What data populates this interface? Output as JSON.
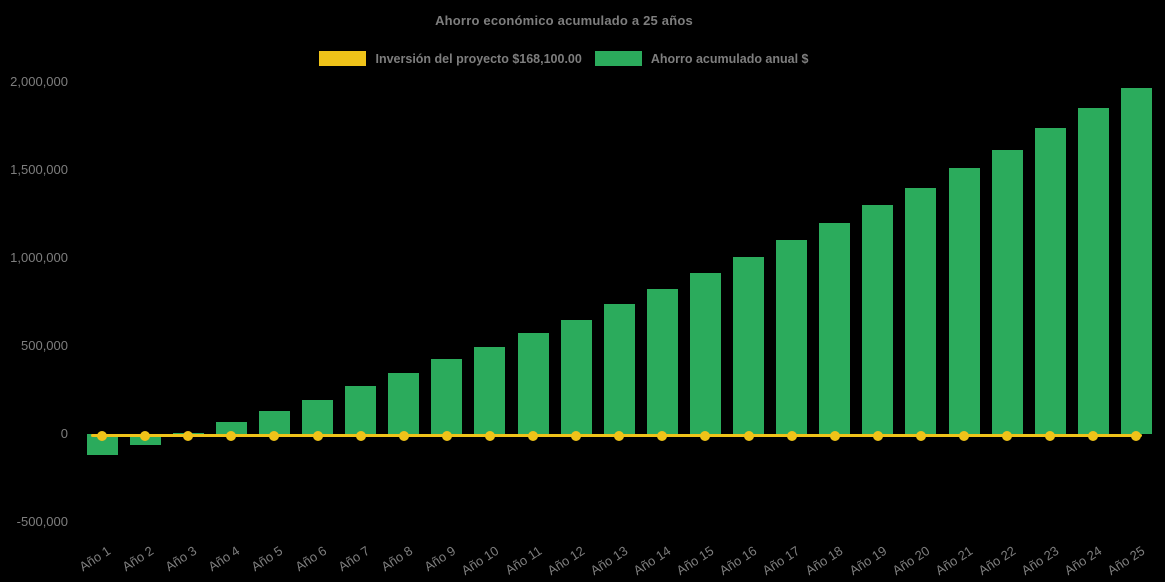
{
  "title": "Ahorro económico acumulado a 25 años",
  "legend": {
    "items": [
      {
        "label": "Inversión del proyecto $168,100.00",
        "color": "#efc319",
        "type": "line"
      },
      {
        "label": "Ahorro acumulado anual $",
        "color": "#2bab5c",
        "type": "bar"
      }
    ]
  },
  "chart_data": {
    "type": "bar",
    "title": "Ahorro económico acumulado a 25 años",
    "background": "#000000",
    "text_color": "#7e7e7e",
    "legend_position": "top",
    "grid": false,
    "xlabel": "",
    "ylabel": "",
    "ylim": [
      -500000,
      2000000
    ],
    "categories": [
      "Año 1",
      "Año 2",
      "Año 3",
      "Año 4",
      "Año 5",
      "Año 6",
      "Año 7",
      "Año 8",
      "Año 9",
      "Año 10",
      "Año 11",
      "Año 12",
      "Año 13",
      "Año 14",
      "Año 15",
      "Año 16",
      "Año 17",
      "Año 18",
      "Año 19",
      "Año 20",
      "Año 21",
      "Año 22",
      "Año 23",
      "Año 24",
      "Año 25"
    ],
    "series": [
      {
        "name": "Inversión del proyecto $168,100.00",
        "type": "line",
        "color": "#efc319",
        "marker": "circle",
        "values": [
          0,
          0,
          0,
          0,
          0,
          0,
          0,
          0,
          0,
          0,
          0,
          0,
          0,
          0,
          0,
          0,
          0,
          0,
          0,
          0,
          0,
          0,
          0,
          0,
          0
        ]
      },
      {
        "name": "Ahorro acumulado anual $",
        "type": "bar",
        "color": "#2bab5c",
        "values": [
          -120000,
          -60000,
          8000,
          70000,
          130000,
          195000,
          275000,
          345000,
          425000,
          495000,
          575000,
          650000,
          740000,
          825000,
          915000,
          1005000,
          1105000,
          1200000,
          1300000,
          1400000,
          1510000,
          1615000,
          1740000,
          1850000,
          1965000
        ]
      }
    ],
    "y_axis": {
      "ticks": [
        {
          "value": 2000000,
          "label": "2,000,000"
        },
        {
          "value": 1500000,
          "label": "1,500,000"
        },
        {
          "value": 1000000,
          "label": "1,000,000"
        },
        {
          "value": 500000,
          "label": "500,000"
        },
        {
          "value": 0,
          "label": "0"
        },
        {
          "value": -500000,
          "label": "-500,000"
        }
      ]
    }
  }
}
